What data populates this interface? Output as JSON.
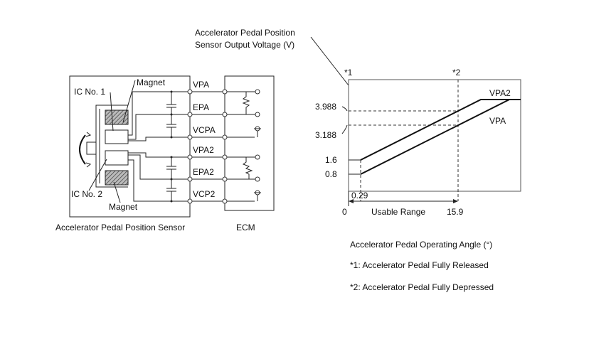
{
  "circuit": {
    "sensor_label": "Accelerator Pedal Position Sensor",
    "ecm_label": "ECM",
    "ic1_label": "IC No. 1",
    "ic2_label": "IC No. 2",
    "magnet_top_label": "Magnet",
    "magnet_bottom_label": "Magnet",
    "pins": [
      "VPA",
      "EPA",
      "VCPA",
      "VPA2",
      "EPA2",
      "VCP2"
    ]
  },
  "graph": {
    "y_axis_label_line1": "Accelerator Pedal Position",
    "y_axis_label_line2": "Sensor Output Voltage (V)",
    "marker1": "*1",
    "marker2": "*2",
    "y_ticks": [
      "3.988",
      "3.188",
      "1.6",
      "0.8"
    ],
    "x_ticks": [
      "0",
      "0.29",
      "15.9"
    ],
    "usable_range_label": "Usable Range",
    "series": [
      "VPA2",
      "VPA"
    ],
    "x_axis_label": "Accelerator Pedal Operating Angle (°)",
    "note1": "*1: Accelerator Pedal Fully Released",
    "note2": "*2: Accelerator Pedal Fully Depressed"
  }
}
